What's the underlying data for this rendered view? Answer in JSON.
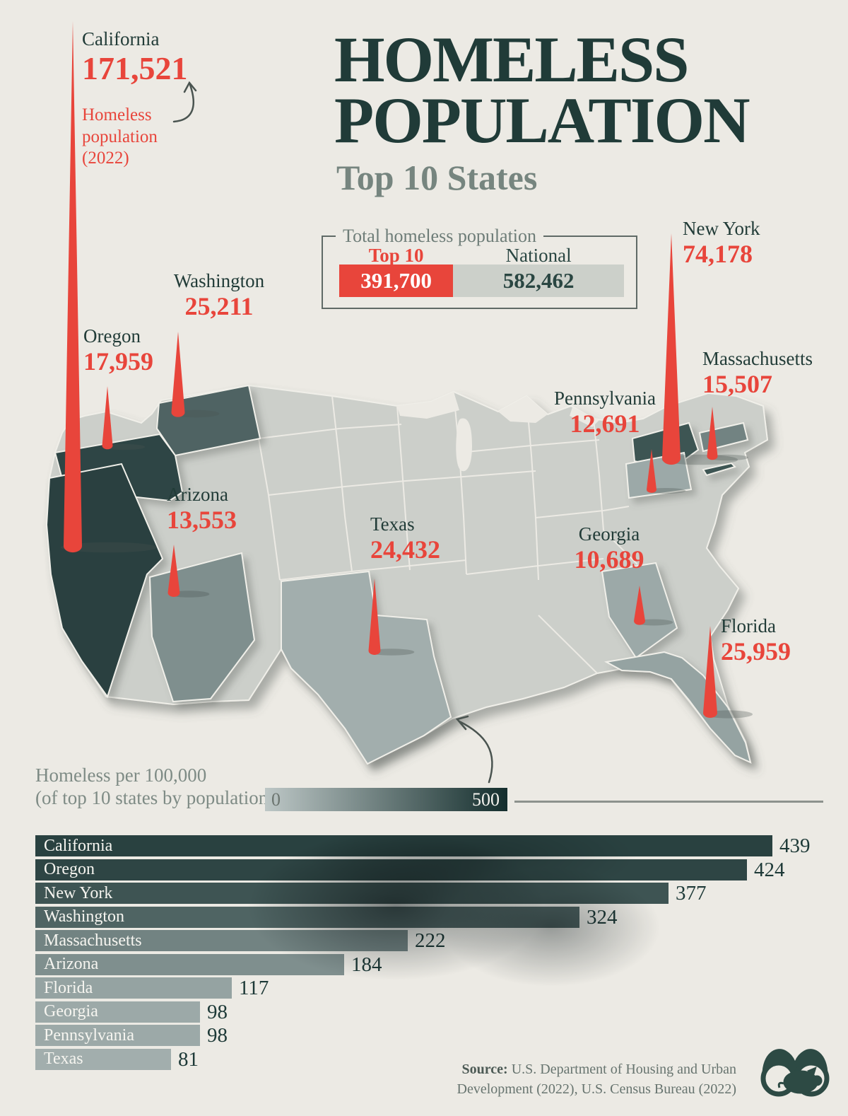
{
  "header": {
    "title_line1": "HOMELESS",
    "title_line2": "POPULATION",
    "subtitle": "Top 10 States",
    "annotation_note": "Homeless population (2022)"
  },
  "totals_box": {
    "title": "Total homeless population",
    "top10_label": "Top 10",
    "top10_value": "391,700",
    "national_label": "National",
    "national_value": "582,462"
  },
  "legend": {
    "line1": "Homeless per 100,000",
    "line2": "(of top 10 states by population)",
    "min_label": "0",
    "max_label": "500"
  },
  "source": {
    "label": "Source:",
    "text": " U.S. Department of Housing and Urban Development (2022), U.S. Census Bureau (2022)"
  },
  "colors": {
    "background": "#eceae4",
    "title": "#203b38",
    "subtitle": "#76857f",
    "red": "#e8453b",
    "state_name_text": "#223c38",
    "map_base_state": "#cccfca",
    "map_border": "#f0efe9",
    "scale_light": "#bdc7c6",
    "scale_dark": "#142e2d",
    "bar_value_text": "#1d3937",
    "logo": "#2d4a44"
  },
  "chart_data": [
    {
      "type": "map-spike",
      "title": "Homeless population (2022) by state, top 10 states",
      "series": [
        {
          "state": "California",
          "homeless_2022": 171521,
          "label": "171,521",
          "per_100k": 439
        },
        {
          "state": "New York",
          "homeless_2022": 74178,
          "label": "74,178",
          "per_100k": 377
        },
        {
          "state": "Florida",
          "homeless_2022": 25959,
          "label": "25,959",
          "per_100k": 117
        },
        {
          "state": "Washington",
          "homeless_2022": 25211,
          "label": "25,211",
          "per_100k": 324
        },
        {
          "state": "Texas",
          "homeless_2022": 24432,
          "label": "24,432",
          "per_100k": 81
        },
        {
          "state": "Oregon",
          "homeless_2022": 17959,
          "label": "17,959",
          "per_100k": 424
        },
        {
          "state": "Massachusetts",
          "homeless_2022": 15507,
          "label": "15,507",
          "per_100k": 222
        },
        {
          "state": "Arizona",
          "homeless_2022": 13553,
          "label": "13,553",
          "per_100k": 184
        },
        {
          "state": "Pennsylvania",
          "homeless_2022": 12691,
          "label": "12,691",
          "per_100k": 98
        },
        {
          "state": "Georgia",
          "homeless_2022": 10689,
          "label": "10,689",
          "per_100k": 98
        }
      ],
      "totals": {
        "top_10": 391700,
        "national": 582462
      }
    },
    {
      "type": "bar",
      "title": "Homeless per 100,000 (of top 10 states by population)",
      "categories": [
        "California",
        "Oregon",
        "New York",
        "Washington",
        "Massachusetts",
        "Arizona",
        "Florida",
        "Georgia",
        "Pennsylvania",
        "Texas"
      ],
      "values": [
        439,
        424,
        377,
        324,
        222,
        184,
        117,
        98,
        98,
        81
      ],
      "xlim": [
        0,
        500
      ],
      "legend_position": "above-left"
    }
  ]
}
